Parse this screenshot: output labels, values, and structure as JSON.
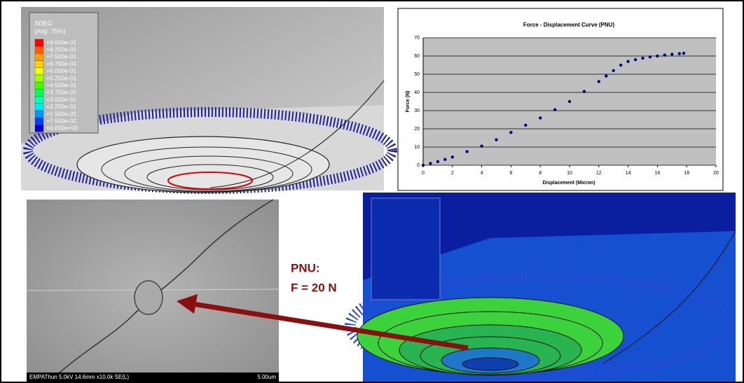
{
  "fe_top": {
    "title": "SDEG",
    "subtitle": "(Avg: 75%)",
    "legend": [
      {
        "label": "+9.000e-01",
        "color": "#ff0000"
      },
      {
        "label": "+8.250e-01",
        "color": "#ff5a00"
      },
      {
        "label": "+7.500e-01",
        "color": "#ffa000"
      },
      {
        "label": "+6.750e-01",
        "color": "#ffd200"
      },
      {
        "label": "+6.000e-01",
        "color": "#f0ff00"
      },
      {
        "label": "+5.250e-01",
        "color": "#a0ff00"
      },
      {
        "label": "+4.500e-01",
        "color": "#3cff00"
      },
      {
        "label": "+3.750e-01",
        "color": "#00ff50"
      },
      {
        "label": "+3.000e-01",
        "color": "#00ffb4"
      },
      {
        "label": "+2.250e-01",
        "color": "#00e6ff"
      },
      {
        "label": "+1.500e-01",
        "color": "#0096ff"
      },
      {
        "label": "+7.500e-02",
        "color": "#0040ff"
      },
      {
        "label": "+0.000e+00",
        "color": "#0000c8"
      }
    ]
  },
  "chart_data": {
    "type": "scatter",
    "title": "Force - Displacement Curve (PNU)",
    "x_label": "Displacement (Micron)",
    "y_label": "Force (N)",
    "x": [
      0,
      0.5,
      1,
      1.5,
      2,
      3,
      4,
      5,
      6,
      7,
      8,
      9,
      10,
      11,
      12,
      12.5,
      13,
      13.5,
      14,
      14.5,
      15,
      15.5,
      16,
      16.5,
      17,
      17.5,
      17.8
    ],
    "values": [
      0,
      1,
      2,
      3.2,
      4.5,
      7.5,
      10.5,
      14,
      18,
      22,
      26,
      30.5,
      35,
      40.5,
      46,
      49,
      52,
      55,
      57,
      58,
      58.8,
      59.5,
      60,
      60.5,
      61,
      61.3,
      61.5
    ],
    "color": "#000080",
    "xlim": [
      0,
      20
    ],
    "xticks": [
      0,
      2,
      4,
      6,
      8,
      10,
      12,
      14,
      16,
      18,
      20
    ],
    "ylim": [
      0,
      70
    ],
    "yticks": [
      0,
      10,
      20,
      30,
      40,
      50,
      60,
      70
    ],
    "grid": true
  },
  "sem_image": {
    "caption": "EMPAThun 5.0kV 14.6mm x10.0k SE(L)",
    "scale": "5.00um"
  },
  "annotation": {
    "lines": [
      "PNU:",
      "F = 20 N"
    ],
    "color": "#8b0f0f"
  }
}
